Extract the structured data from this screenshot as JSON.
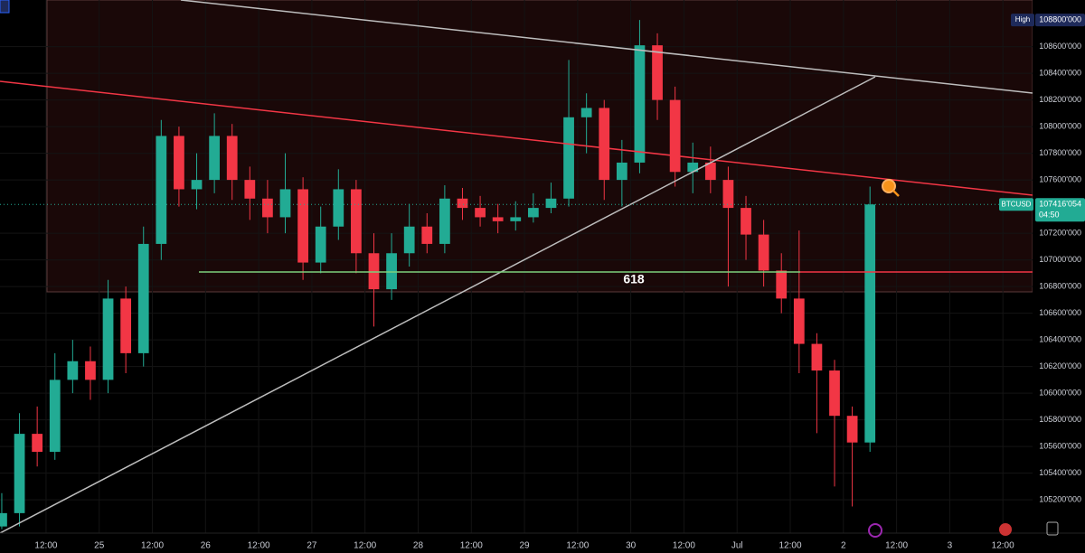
{
  "chart_data": {
    "type": "candlestick",
    "x": [
      2,
      6,
      10,
      14,
      18,
      22,
      26,
      30,
      34,
      38,
      42,
      46,
      50,
      54,
      58,
      62,
      66,
      70,
      74,
      78,
      82,
      86,
      90,
      94,
      98,
      102,
      106,
      110,
      114,
      118,
      122,
      126,
      130,
      134,
      138,
      142,
      146,
      150,
      154,
      158,
      162,
      166,
      170,
      174,
      178,
      182,
      186,
      190,
      194,
      198
    ],
    "open": [
      105000,
      105100,
      105695,
      105560,
      106100,
      106240,
      106100,
      106710,
      106300,
      107120,
      107930,
      107530,
      107600,
      107930,
      107600,
      107460,
      107320,
      107530,
      106980,
      107250,
      107530,
      107050,
      106780,
      107050,
      107250,
      107120,
      107460,
      107390,
      107320,
      107290,
      107320,
      107390,
      107460,
      108070,
      108140,
      107600,
      107730,
      108610,
      108200,
      107660,
      107730,
      107600,
      107390,
      107190,
      106920,
      106710,
      106370,
      106170,
      105830,
      105630
    ],
    "high": [
      105250,
      105850,
      105900,
      106300,
      106400,
      106350,
      106850,
      106800,
      107250,
      108050,
      108000,
      107800,
      108100,
      108020,
      107700,
      107600,
      107800,
      107620,
      107400,
      107680,
      107600,
      107200,
      107200,
      107420,
      107350,
      107560,
      107540,
      107480,
      107420,
      107440,
      107500,
      107580,
      108500,
      108250,
      108200,
      107900,
      108800,
      108700,
      108300,
      107880,
      107850,
      107700,
      107480,
      107300,
      107050,
      107220,
      106450,
      106250,
      105900,
      107550
    ],
    "low": [
      104980,
      105000,
      105450,
      105500,
      106000,
      105950,
      106000,
      106150,
      106200,
      107000,
      107400,
      107380,
      107500,
      107450,
      107300,
      107200,
      107200,
      106850,
      106900,
      107150,
      106900,
      106500,
      106700,
      106950,
      107050,
      107050,
      107300,
      107250,
      107200,
      107220,
      107280,
      107350,
      107400,
      107800,
      107450,
      107400,
      107650,
      108050,
      107550,
      107500,
      107500,
      106800,
      107000,
      106800,
      106600,
      106150,
      105700,
      105300,
      105150,
      105560
    ],
    "close": [
      105100,
      105695,
      105560,
      106100,
      106240,
      106100,
      106710,
      106300,
      107120,
      107930,
      107530,
      107600,
      107930,
      107600,
      107460,
      107320,
      107530,
      106980,
      107250,
      107530,
      107050,
      106780,
      107050,
      107250,
      107120,
      107460,
      107390,
      107320,
      107290,
      107320,
      107390,
      107460,
      108070,
      108140,
      107600,
      107730,
      108610,
      108200,
      107660,
      107730,
      107600,
      107390,
      107190,
      106920,
      106710,
      106370,
      106170,
      105830,
      105630,
      107416
    ],
    "up_color": "#22ab94",
    "down_color": "#f23645",
    "xlim": [
      1.6,
      234.7
    ],
    "xticks": [
      {
        "value": 12,
        "label": "12:00"
      },
      {
        "value": 24,
        "label": "25"
      },
      {
        "value": 36,
        "label": "12:00"
      },
      {
        "value": 48,
        "label": "26"
      },
      {
        "value": 60,
        "label": "12:00"
      },
      {
        "value": 72,
        "label": "27"
      },
      {
        "value": 84,
        "label": "12:00"
      },
      {
        "value": 96,
        "label": "28"
      },
      {
        "value": 108,
        "label": "12:00"
      },
      {
        "value": 120,
        "label": "29"
      },
      {
        "value": 132,
        "label": "12:00"
      },
      {
        "value": 144,
        "label": "30"
      },
      {
        "value": 156,
        "label": "12:00"
      },
      {
        "value": 168,
        "label": "Jul"
      },
      {
        "value": 180,
        "label": "12:00"
      },
      {
        "value": 192,
        "label": "2"
      },
      {
        "value": 204,
        "label": "12:00"
      },
      {
        "value": 216,
        "label": "3"
      },
      {
        "value": 228,
        "label": "12:00"
      }
    ],
    "ylim": [
      104950,
      108950
    ],
    "yticks": [
      {
        "value": 108600,
        "label": "108600'000"
      },
      {
        "value": 108400,
        "label": "108400'000"
      },
      {
        "value": 108200,
        "label": "108200'000"
      },
      {
        "value": 108000,
        "label": "108000'000"
      },
      {
        "value": 107800,
        "label": "107800'000"
      },
      {
        "value": 107600,
        "label": "107600'000"
      },
      {
        "value": 107200,
        "label": "107200'000"
      },
      {
        "value": 107000,
        "label": "107000'000"
      },
      {
        "value": 106800,
        "label": "106800'000"
      },
      {
        "value": 106600,
        "label": "106600'000"
      },
      {
        "value": 106400,
        "label": "106400'000"
      },
      {
        "value": 106200,
        "label": "106200'000"
      },
      {
        "value": 106000,
        "label": "106000'000"
      },
      {
        "value": 105800,
        "label": "105800'000"
      },
      {
        "value": 105600,
        "label": "105600'000"
      },
      {
        "value": 105400,
        "label": "105400'000"
      },
      {
        "value": 105200,
        "label": "105200'000"
      }
    ],
    "grid": true,
    "annotations": [
      "618"
    ],
    "high_marker": {
      "label": "High",
      "value": 108800,
      "value_label": "108800'000"
    },
    "last_price": {
      "symbol": "BTCUSD",
      "value": 107416.054,
      "value_label": "107416'054",
      "countdown": "04:50"
    }
  }
}
